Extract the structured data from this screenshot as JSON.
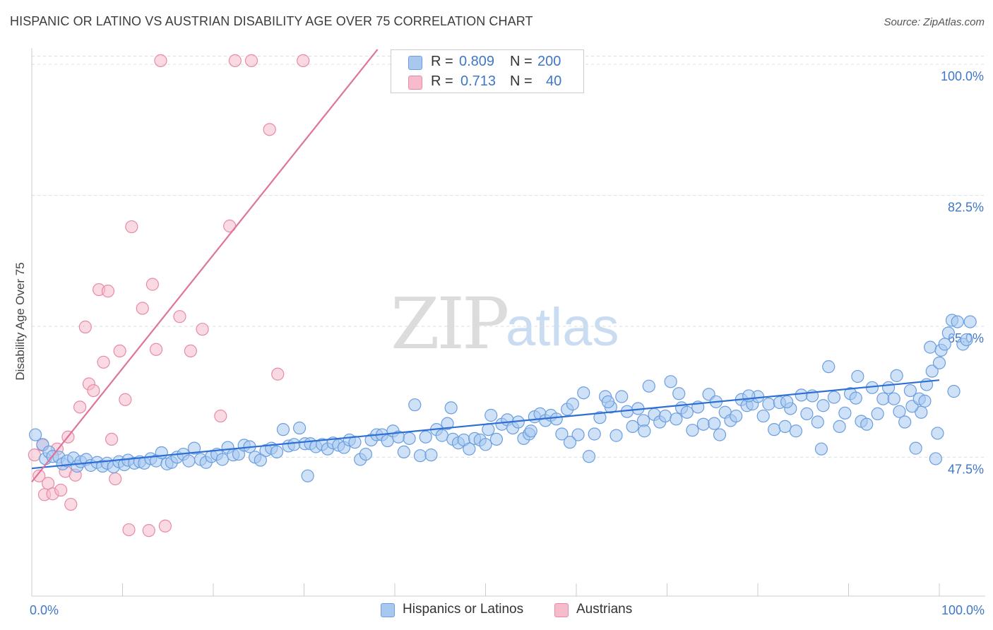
{
  "title": "HISPANIC OR LATINO VS AUSTRIAN DISABILITY AGE OVER 75 CORRELATION CHART",
  "source": "Source: ZipAtlas.com",
  "watermark": {
    "zip": "ZIP",
    "atlas": "atlas"
  },
  "legend": {
    "r_label": "R =",
    "n_label": "N =",
    "rows": [
      {
        "r": "0.809",
        "n": "200",
        "color": "#a8c8f0",
        "border": "#6a9ee0"
      },
      {
        "r": "0.713",
        "n": "40",
        "color": "#f6bccb",
        "border": "#e88aa6"
      }
    ]
  },
  "bottom_legend": [
    {
      "label": "Hispanics or Latinos",
      "color": "#a8c8f0",
      "border": "#6a9ee0"
    },
    {
      "label": "Austrians",
      "color": "#f6bccb",
      "border": "#e88aa6"
    }
  ],
  "chart_data": {
    "type": "scatter",
    "title": "HISPANIC OR LATINO VS AUSTRIAN DISABILITY AGE OVER 75 CORRELATION CHART",
    "xlabel": "",
    "ylabel": "Disability Age Over 75",
    "xlim": [
      0,
      100
    ],
    "ylim": [
      29.5,
      102
    ],
    "x_tick_labels": [
      "0.0%",
      "100.0%"
    ],
    "y_ticks": [
      47.5,
      65.0,
      82.5,
      100.0
    ],
    "y_tick_labels": [
      "47.5%",
      "65.0%",
      "82.5%",
      "100.0%"
    ],
    "grid": true,
    "series": [
      {
        "name": "Hispanics or Latinos",
        "color": "#a8c8f0",
        "border": "#6a9ee0",
        "line_color": "#2d6fd4",
        "trend": [
          [
            0,
            46.0
          ],
          [
            100,
            57.8
          ]
        ],
        "points": [
          [
            0.4,
            50.5
          ],
          [
            1.2,
            49.2
          ],
          [
            1.5,
            47.3
          ],
          [
            1.9,
            48.2
          ],
          [
            2.3,
            47.6
          ],
          [
            3.0,
            47.5
          ],
          [
            3.4,
            46.6
          ],
          [
            3.9,
            47.0
          ],
          [
            4.6,
            47.4
          ],
          [
            5.0,
            46.3
          ],
          [
            5.4,
            46.9
          ],
          [
            6.0,
            47.2
          ],
          [
            6.5,
            46.4
          ],
          [
            7.2,
            46.8
          ],
          [
            7.8,
            46.3
          ],
          [
            8.3,
            46.7
          ],
          [
            9.0,
            46.2
          ],
          [
            9.6,
            46.9
          ],
          [
            10.2,
            46.5
          ],
          [
            10.6,
            47.1
          ],
          [
            11.3,
            46.7
          ],
          [
            11.9,
            46.9
          ],
          [
            12.4,
            46.7
          ],
          [
            13.1,
            47.3
          ],
          [
            13.7,
            47.0
          ],
          [
            14.3,
            48.1
          ],
          [
            14.9,
            46.6
          ],
          [
            15.4,
            46.8
          ],
          [
            16.0,
            47.5
          ],
          [
            16.7,
            47.9
          ],
          [
            17.3,
            47.0
          ],
          [
            17.9,
            48.7
          ],
          [
            18.6,
            47.2
          ],
          [
            19.2,
            46.8
          ],
          [
            19.8,
            47.6
          ],
          [
            20.4,
            47.9
          ],
          [
            21.0,
            47.2
          ],
          [
            21.6,
            48.8
          ],
          [
            22.2,
            47.8
          ],
          [
            22.8,
            47.9
          ],
          [
            23.4,
            49.1
          ],
          [
            24.0,
            48.9
          ],
          [
            24.6,
            47.5
          ],
          [
            25.2,
            47.1
          ],
          [
            25.8,
            48.4
          ],
          [
            26.4,
            48.7
          ],
          [
            27.0,
            48.2
          ],
          [
            27.7,
            51.2
          ],
          [
            28.3,
            49.0
          ],
          [
            28.9,
            49.2
          ],
          [
            29.5,
            51.4
          ],
          [
            30.1,
            49.3
          ],
          [
            30.7,
            49.3
          ],
          [
            31.3,
            48.9
          ],
          [
            32.0,
            49.2
          ],
          [
            32.6,
            48.6
          ],
          [
            33.2,
            49.4
          ],
          [
            33.8,
            49.1
          ],
          [
            34.4,
            48.8
          ],
          [
            35.0,
            49.8
          ],
          [
            35.6,
            49.5
          ],
          [
            36.2,
            47.2
          ],
          [
            36.8,
            47.9
          ],
          [
            37.4,
            49.8
          ],
          [
            38.0,
            50.5
          ],
          [
            38.6,
            50.5
          ],
          [
            39.2,
            49.7
          ],
          [
            39.8,
            51.0
          ],
          [
            40.4,
            50.2
          ],
          [
            41.0,
            48.2
          ],
          [
            41.6,
            50.0
          ],
          [
            42.2,
            54.5
          ],
          [
            42.8,
            47.7
          ],
          [
            43.4,
            50.2
          ],
          [
            44.0,
            47.8
          ],
          [
            44.6,
            51.2
          ],
          [
            45.2,
            50.4
          ],
          [
            45.8,
            52.0
          ],
          [
            46.4,
            49.9
          ],
          [
            47.0,
            49.4
          ],
          [
            47.6,
            49.8
          ],
          [
            48.2,
            48.6
          ],
          [
            48.8,
            50.0
          ],
          [
            49.4,
            49.8
          ],
          [
            50.0,
            49.2
          ],
          [
            50.6,
            53.1
          ],
          [
            51.2,
            49.9
          ],
          [
            51.8,
            51.9
          ],
          [
            52.4,
            52.5
          ],
          [
            53.0,
            51.4
          ],
          [
            53.6,
            52.2
          ],
          [
            54.2,
            50.0
          ],
          [
            54.8,
            50.6
          ],
          [
            55.4,
            52.9
          ],
          [
            56.0,
            53.3
          ],
          [
            56.6,
            52.4
          ],
          [
            57.2,
            53.1
          ],
          [
            57.8,
            52.6
          ],
          [
            58.4,
            50.6
          ],
          [
            59.0,
            53.9
          ],
          [
            59.6,
            54.6
          ],
          [
            60.2,
            50.5
          ],
          [
            60.8,
            56.1
          ],
          [
            61.4,
            47.6
          ],
          [
            62.0,
            50.6
          ],
          [
            62.6,
            52.8
          ],
          [
            63.2,
            55.6
          ],
          [
            63.8,
            54.2
          ],
          [
            64.4,
            50.4
          ],
          [
            65.0,
            55.6
          ],
          [
            65.6,
            53.6
          ],
          [
            66.2,
            51.6
          ],
          [
            66.8,
            54.0
          ],
          [
            67.4,
            52.4
          ],
          [
            68.0,
            57.0
          ],
          [
            68.6,
            53.2
          ],
          [
            69.2,
            52.2
          ],
          [
            69.8,
            53.0
          ],
          [
            70.4,
            57.6
          ],
          [
            71.0,
            52.6
          ],
          [
            71.6,
            54.1
          ],
          [
            72.2,
            53.5
          ],
          [
            72.8,
            51.1
          ],
          [
            73.4,
            54.2
          ],
          [
            74.0,
            51.9
          ],
          [
            74.6,
            55.9
          ],
          [
            75.2,
            52.0
          ],
          [
            75.8,
            50.5
          ],
          [
            76.4,
            53.5
          ],
          [
            77.0,
            52.4
          ],
          [
            77.6,
            53.0
          ],
          [
            78.2,
            55.2
          ],
          [
            78.8,
            54.4
          ],
          [
            79.4,
            54.6
          ],
          [
            80.0,
            55.6
          ],
          [
            80.6,
            53.0
          ],
          [
            81.2,
            54.6
          ],
          [
            81.8,
            51.2
          ],
          [
            82.4,
            54.8
          ],
          [
            83.0,
            51.6
          ],
          [
            83.6,
            54.0
          ],
          [
            84.2,
            51.0
          ],
          [
            84.8,
            55.8
          ],
          [
            85.4,
            53.3
          ],
          [
            86.0,
            55.7
          ],
          [
            86.6,
            52.2
          ],
          [
            87.2,
            54.4
          ],
          [
            87.8,
            59.6
          ],
          [
            88.4,
            55.5
          ],
          [
            89.0,
            51.6
          ],
          [
            89.6,
            53.4
          ],
          [
            90.2,
            56.0
          ],
          [
            90.8,
            55.4
          ],
          [
            91.4,
            52.3
          ],
          [
            92.0,
            51.9
          ],
          [
            92.6,
            56.8
          ],
          [
            93.2,
            53.3
          ],
          [
            93.8,
            55.3
          ],
          [
            94.4,
            56.8
          ],
          [
            95.0,
            55.3
          ],
          [
            95.6,
            53.6
          ],
          [
            96.2,
            52.2
          ],
          [
            96.8,
            56.4
          ],
          [
            97.4,
            48.7
          ],
          [
            98.0,
            53.5
          ],
          [
            98.6,
            57.2
          ],
          [
            99.2,
            59.0
          ],
          [
            99.8,
            50.7
          ],
          [
            46.2,
            54.1
          ],
          [
            50.3,
            51.2
          ],
          [
            55.0,
            51.0
          ],
          [
            59.3,
            49.5
          ],
          [
            63.5,
            54.9
          ],
          [
            67.5,
            51.0
          ],
          [
            71.3,
            56.0
          ],
          [
            75.4,
            54.9
          ],
          [
            79.0,
            55.7
          ],
          [
            83.2,
            54.9
          ],
          [
            87.0,
            48.6
          ],
          [
            91.0,
            58.3
          ],
          [
            95.3,
            58.4
          ],
          [
            99.0,
            62.2
          ],
          [
            100.2,
            61.8
          ],
          [
            100.6,
            62.6
          ],
          [
            101.0,
            64.1
          ],
          [
            101.4,
            65.8
          ],
          [
            102.0,
            65.6
          ],
          [
            102.6,
            62.6
          ],
          [
            103.0,
            63.2
          ],
          [
            103.4,
            65.6
          ],
          [
            97.0,
            54.3
          ],
          [
            97.8,
            55.3
          ],
          [
            98.4,
            55.0
          ],
          [
            99.6,
            47.3
          ],
          [
            100.0,
            60.1
          ],
          [
            101.6,
            56.3
          ],
          [
            30.4,
            45.0
          ]
        ]
      },
      {
        "name": "Austrians",
        "color": "#f6bccb",
        "border": "#e88aa6",
        "line_color": "#e07399",
        "trend": [
          [
            0,
            44.2
          ],
          [
            38.1,
            102
          ]
        ],
        "points": [
          [
            0.3,
            47.8
          ],
          [
            0.8,
            45.0
          ],
          [
            1.2,
            49.1
          ],
          [
            1.4,
            42.5
          ],
          [
            1.8,
            44.0
          ],
          [
            2.3,
            42.6
          ],
          [
            2.8,
            48.6
          ],
          [
            3.2,
            43.1
          ],
          [
            3.7,
            45.6
          ],
          [
            4.0,
            50.2
          ],
          [
            4.3,
            41.2
          ],
          [
            4.8,
            45.1
          ],
          [
            5.3,
            54.2
          ],
          [
            5.9,
            64.9
          ],
          [
            6.3,
            57.3
          ],
          [
            6.8,
            56.4
          ],
          [
            7.4,
            69.9
          ],
          [
            7.9,
            60.2
          ],
          [
            8.4,
            69.7
          ],
          [
            8.8,
            49.9
          ],
          [
            9.2,
            44.6
          ],
          [
            9.7,
            61.7
          ],
          [
            10.3,
            55.2
          ],
          [
            10.7,
            37.8
          ],
          [
            11.0,
            78.3
          ],
          [
            12.2,
            67.4
          ],
          [
            12.9,
            37.7
          ],
          [
            13.3,
            70.6
          ],
          [
            13.7,
            61.9
          ],
          [
            14.2,
            100.5
          ],
          [
            14.7,
            38.3
          ],
          [
            16.3,
            66.3
          ],
          [
            17.5,
            61.7
          ],
          [
            18.8,
            64.6
          ],
          [
            20.8,
            53.0
          ],
          [
            21.8,
            78.4
          ],
          [
            22.4,
            100.5
          ],
          [
            24.2,
            100.5
          ],
          [
            26.2,
            91.3
          ],
          [
            27.1,
            58.6
          ],
          [
            29.9,
            100.5
          ]
        ]
      }
    ]
  }
}
